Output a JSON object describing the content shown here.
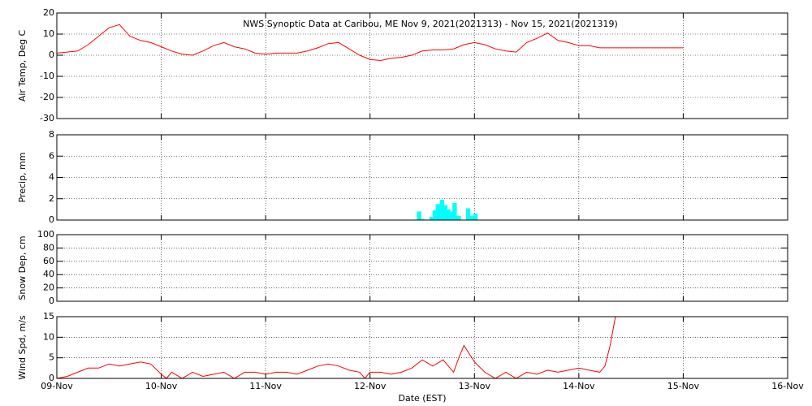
{
  "chart_data": [
    {
      "type": "line",
      "title": "NWS Synoptic Data at Caribou, ME   Nov  9, 2021(2021313) - Nov 15, 2021(2021319)",
      "ylabel": "Air Temp, Deg C",
      "xlim": [
        0,
        7
      ],
      "ylim": [
        -30,
        20
      ],
      "yticks": [
        -30,
        -20,
        -10,
        0,
        10,
        20
      ],
      "grid": true,
      "series": [
        {
          "name": "Air Temp",
          "color": "#ff0000",
          "x": [
            0,
            0.1,
            0.2,
            0.3,
            0.4,
            0.5,
            0.6,
            0.7,
            0.8,
            0.9,
            1.0,
            1.1,
            1.2,
            1.3,
            1.4,
            1.5,
            1.6,
            1.7,
            1.8,
            1.9,
            2.0,
            2.1,
            2.2,
            2.3,
            2.4,
            2.5,
            2.6,
            2.7,
            2.8,
            2.9,
            3.0,
            3.1,
            3.2,
            3.3,
            3.4,
            3.5,
            3.6,
            3.7,
            3.8,
            3.9,
            4.0,
            4.1,
            4.2,
            4.3,
            4.4,
            4.5,
            4.6,
            4.7,
            4.8,
            4.9,
            5.0,
            5.1,
            5.2,
            5.3,
            5.4,
            5.5,
            5.6,
            5.7,
            5.8,
            5.9,
            6.0
          ],
          "values": [
            1,
            1.5,
            2,
            5,
            9,
            13,
            14.5,
            9,
            7,
            6,
            4,
            2,
            0.5,
            0,
            2,
            4.5,
            6,
            4,
            3,
            1,
            0.5,
            1,
            1,
            1,
            2,
            3.5,
            5.5,
            6,
            3,
            0,
            -2,
            -2.5,
            -1.5,
            -1,
            0,
            2,
            2.5,
            2.5,
            3,
            5,
            6,
            5,
            3,
            2,
            1.5,
            6,
            8,
            10.5,
            7,
            6,
            4.5,
            4.5,
            3.5,
            3.5,
            3.5,
            3.5,
            3.5,
            3.5,
            3.5,
            3.5,
            3.5
          ]
        }
      ]
    },
    {
      "type": "bar",
      "ylabel": "Precip, mm",
      "xlim": [
        0,
        7
      ],
      "ylim": [
        0,
        8
      ],
      "yticks": [
        0,
        2,
        4,
        6,
        8
      ],
      "grid": true,
      "series": [
        {
          "name": "Precip",
          "color": "#00ffff",
          "x": [
            3.47,
            3.5,
            3.59,
            3.62,
            3.65,
            3.69,
            3.72,
            3.75,
            3.78,
            3.81,
            3.85,
            3.94,
            3.97,
            4.01
          ],
          "values": [
            0.8,
            0.1,
            0.3,
            0.9,
            1.5,
            1.9,
            1.4,
            1.0,
            0.8,
            1.6,
            0.4,
            1.1,
            0.4,
            0.6
          ]
        }
      ]
    },
    {
      "type": "line",
      "ylabel": "Snow Dep, cm",
      "xlim": [
        0,
        7
      ],
      "ylim": [
        0,
        100
      ],
      "yticks": [
        0,
        20,
        40,
        60,
        80,
        100
      ],
      "grid": true
    },
    {
      "type": "line",
      "ylabel": "Wind Spd, m/s",
      "xlabel": "Date (EST)",
      "xlim": [
        0,
        7
      ],
      "ylim": [
        0,
        15
      ],
      "yticks": [
        0,
        5,
        10,
        15
      ],
      "grid": true,
      "xticks": [
        {
          "value": 0,
          "label": "09-Nov"
        },
        {
          "value": 1,
          "label": "10-Nov"
        },
        {
          "value": 2,
          "label": "11-Nov"
        },
        {
          "value": 3,
          "label": "12-Nov"
        },
        {
          "value": 4,
          "label": "13-Nov"
        },
        {
          "value": 5,
          "label": "14-Nov"
        },
        {
          "value": 6,
          "label": "15-Nov"
        },
        {
          "value": 7,
          "label": "16-Nov"
        }
      ],
      "series": [
        {
          "name": "Wind Spd",
          "color": "#ff0000",
          "x": [
            0,
            0.1,
            0.2,
            0.3,
            0.4,
            0.5,
            0.6,
            0.7,
            0.8,
            0.9,
            1.0,
            1.05,
            1.1,
            1.2,
            1.3,
            1.4,
            1.5,
            1.6,
            1.7,
            1.8,
            1.9,
            2.0,
            2.1,
            2.2,
            2.3,
            2.4,
            2.5,
            2.6,
            2.7,
            2.8,
            2.9,
            2.95,
            3.0,
            3.1,
            3.2,
            3.3,
            3.4,
            3.5,
            3.6,
            3.7,
            3.8,
            3.85,
            3.9,
            4.0,
            4.1,
            4.2,
            4.3,
            4.4,
            4.5,
            4.6,
            4.7,
            4.8,
            4.9,
            5.0,
            5.1,
            5.2,
            5.25,
            5.3,
            5.35
          ],
          "values": [
            0,
            0.5,
            1.5,
            2.5,
            2.5,
            3.5,
            3,
            3.5,
            4,
            3.5,
            1,
            0,
            1.5,
            0,
            1.5,
            0.5,
            1,
            1.5,
            0,
            1.5,
            1.5,
            1,
            1.5,
            1.5,
            1,
            2,
            3,
            3.5,
            3,
            2,
            1.5,
            0,
            1.5,
            1.5,
            1,
            1.5,
            2.5,
            4.5,
            3,
            4.5,
            1.5,
            5,
            8,
            4,
            1.5,
            0,
            1.5,
            0,
            1.5,
            1,
            2,
            1.5,
            2,
            2.5,
            2,
            1.5,
            3,
            8,
            15
          ]
        }
      ]
    }
  ]
}
